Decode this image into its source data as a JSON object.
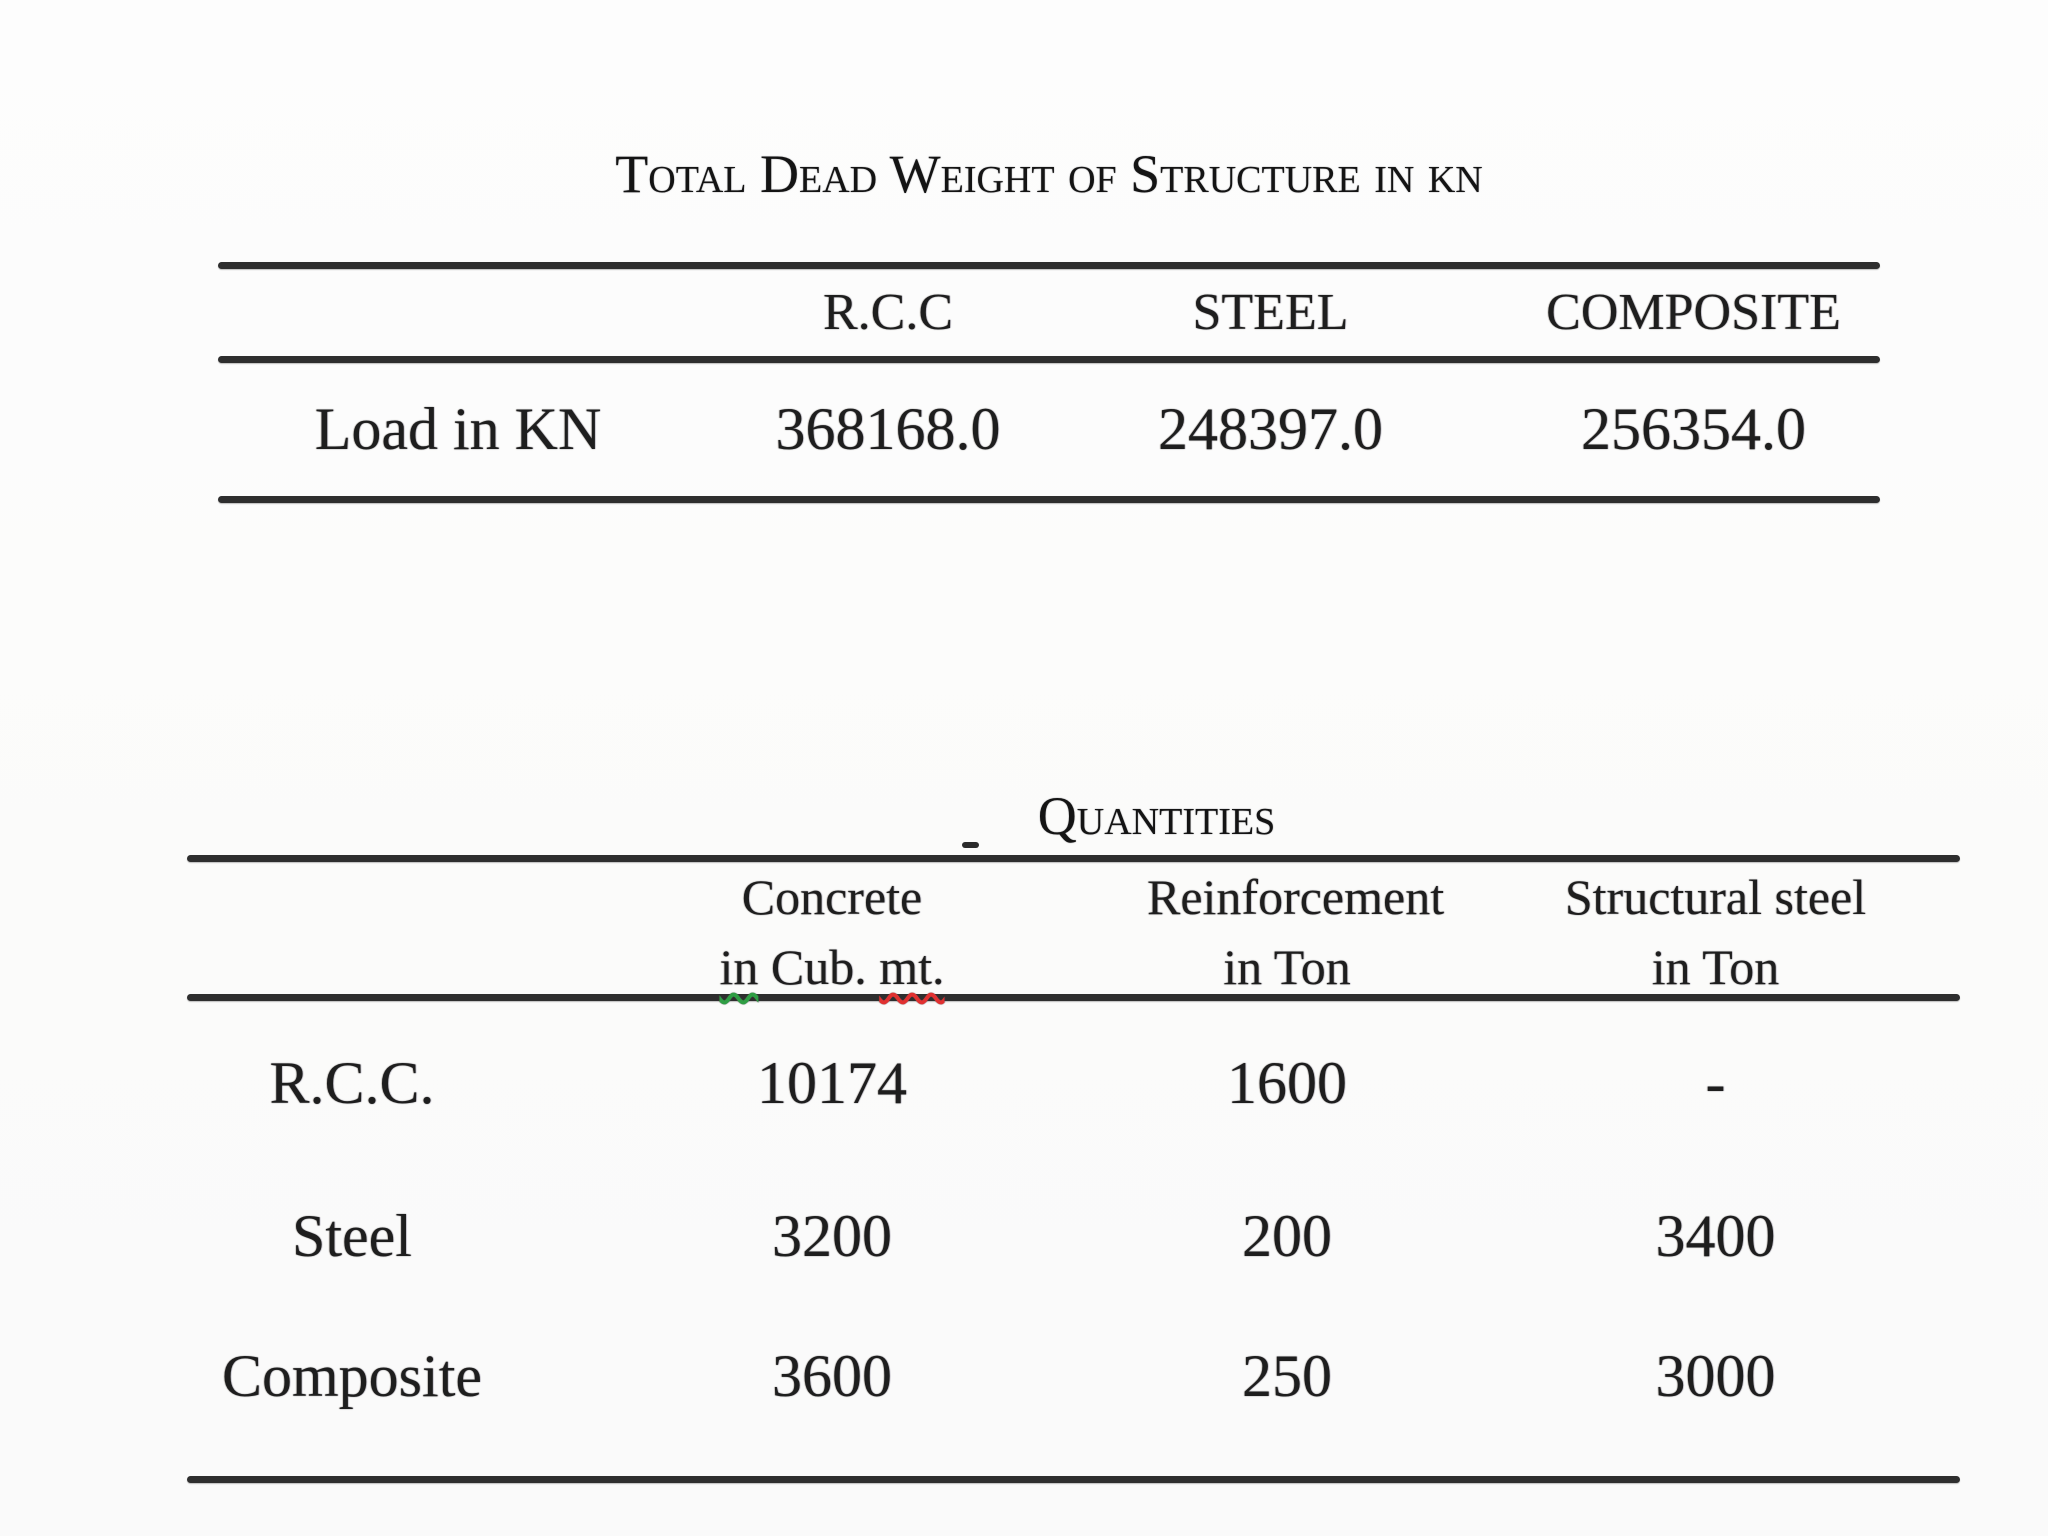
{
  "colors": {
    "rule": "#2e2e2e",
    "text": "#1e1e1e",
    "background": "#fcfcfc",
    "squiggle_green": "#2f9e44",
    "squiggle_red": "#e03131"
  },
  "table1": {
    "title": "Total Dead Weight of Structure in kn",
    "columns": [
      "R.C.C",
      "STEEL",
      "COMPOSITE"
    ],
    "row_label": "Load in KN",
    "values": [
      "368168.0",
      "248397.0",
      "256354.0"
    ]
  },
  "table2": {
    "title": "Quantities",
    "columns": [
      {
        "line1": "Concrete",
        "line2": [
          {
            "text": "in",
            "underline": "green"
          },
          {
            "text": " Cub. ",
            "underline": null
          },
          {
            "text": "mt.",
            "underline": "red"
          }
        ]
      },
      {
        "line1": "Reinforcement",
        "line2": "in Ton"
      },
      {
        "line1": "Structural steel",
        "line2": "in Ton"
      }
    ],
    "rows": [
      {
        "label": "R.C.C.",
        "values": [
          "10174",
          "1600",
          "-"
        ]
      },
      {
        "label": "Steel",
        "values": [
          "3200",
          "200",
          "3400"
        ]
      },
      {
        "label": "Composite",
        "values": [
          "3600",
          "250",
          "3000"
        ]
      }
    ]
  }
}
